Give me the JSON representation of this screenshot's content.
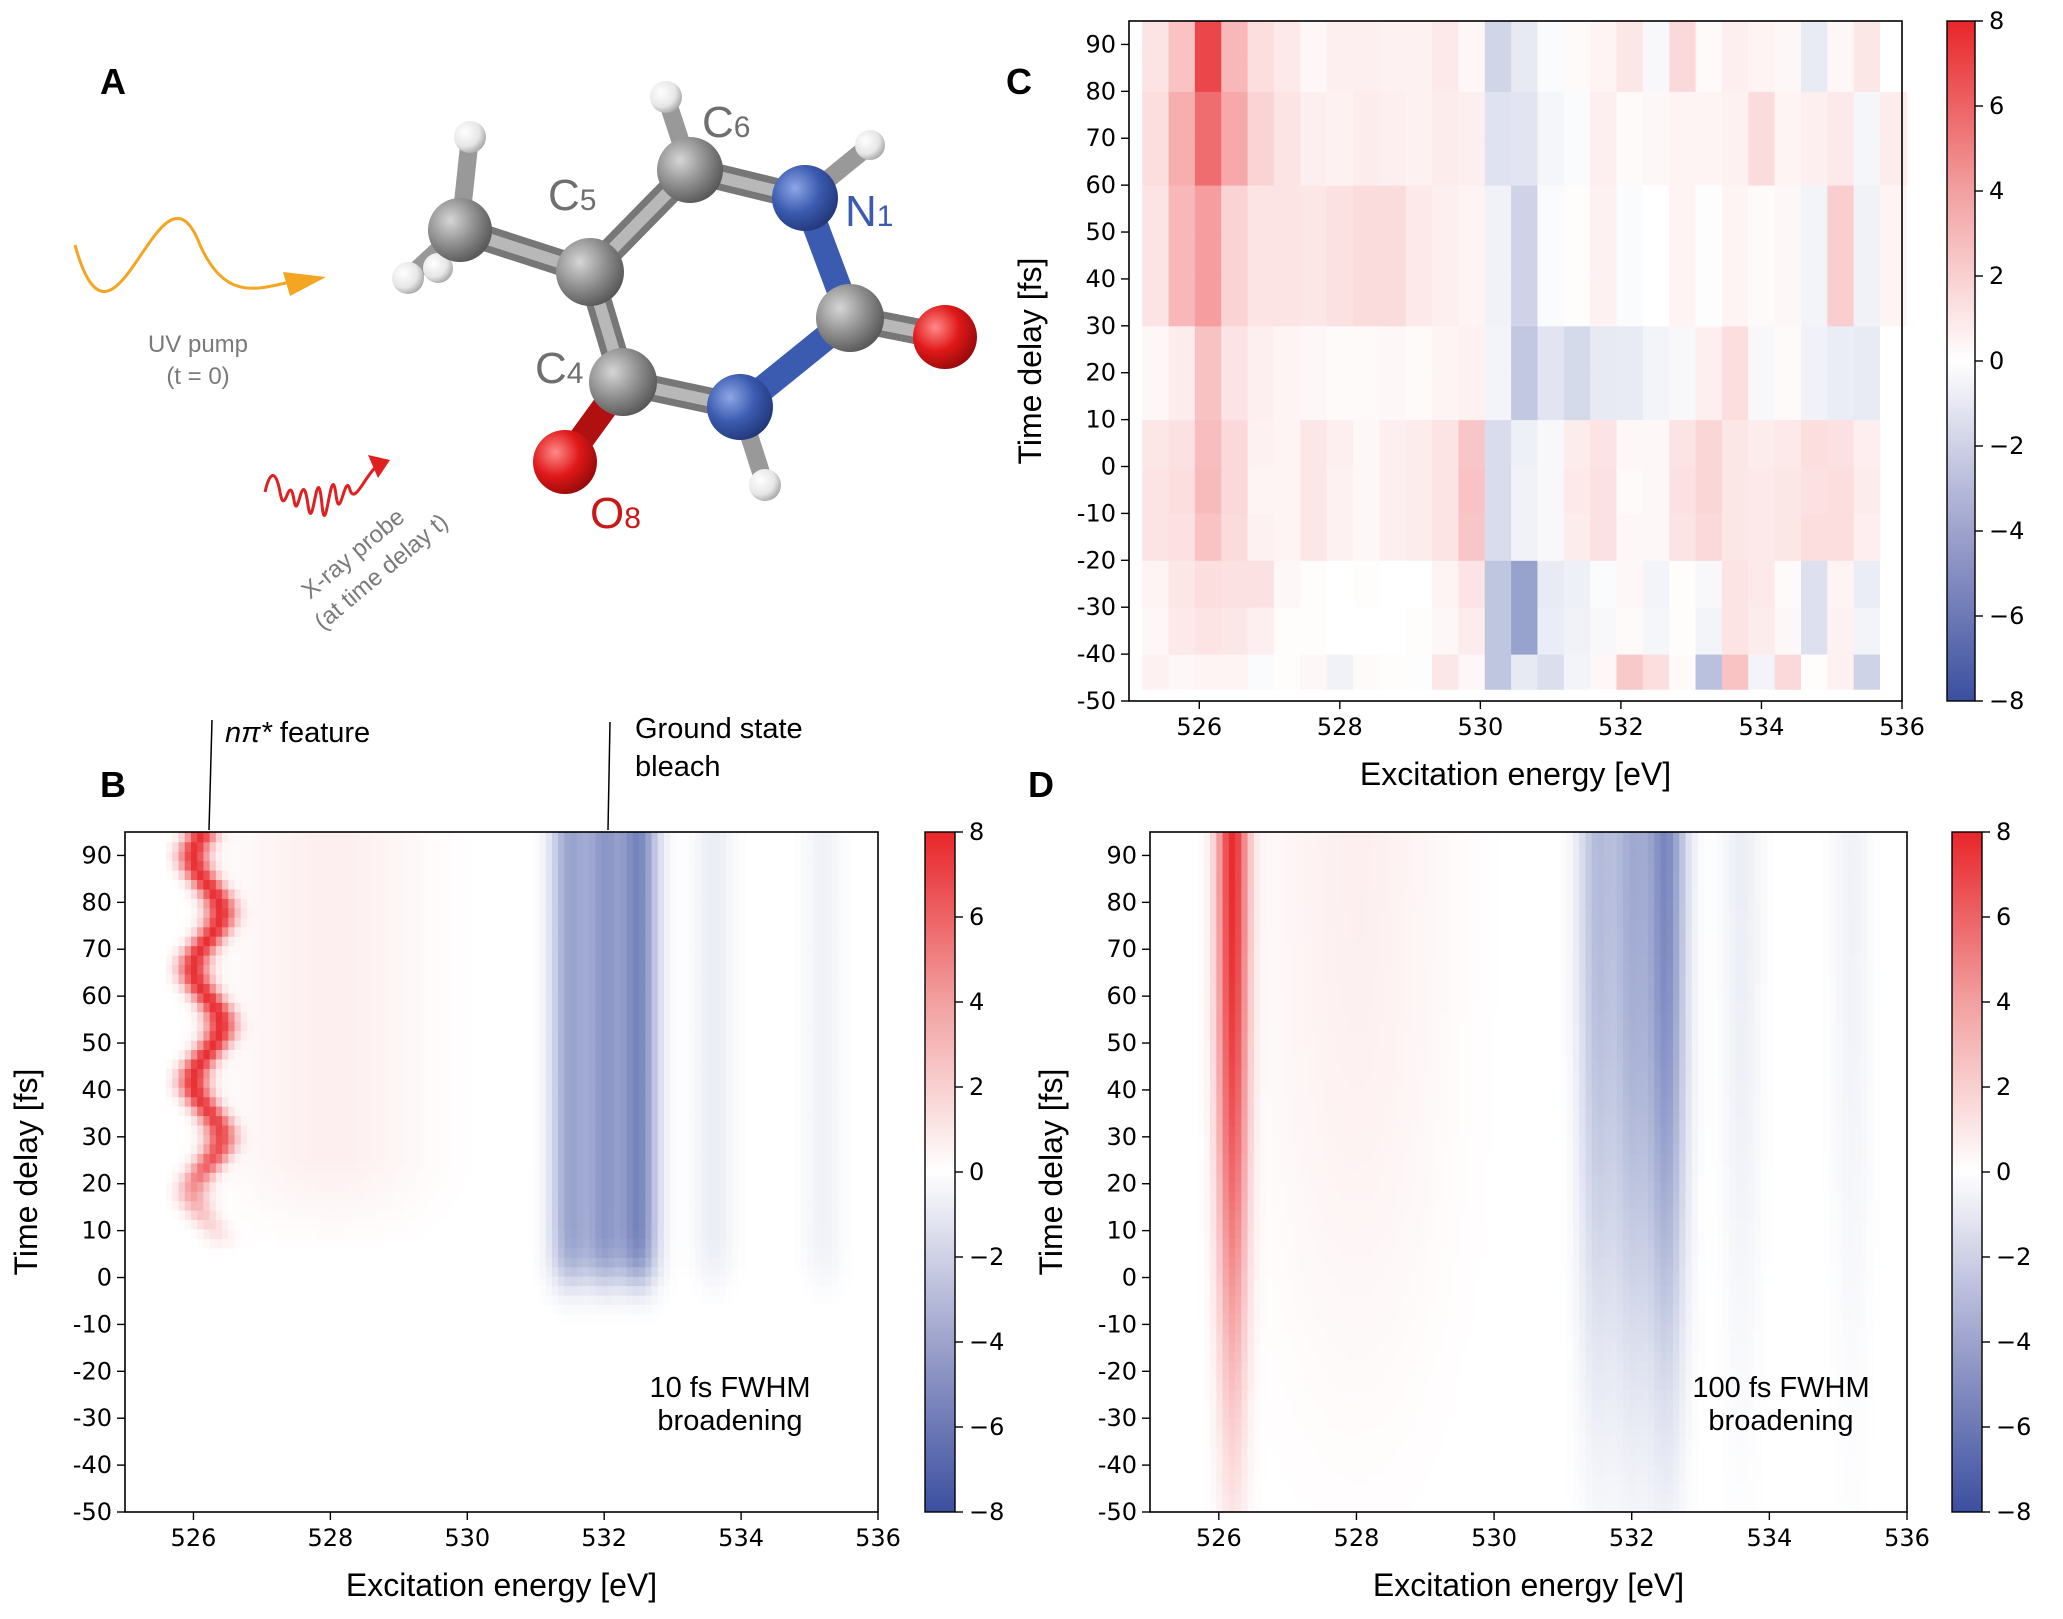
{
  "panel_labels": {
    "a": "A",
    "b": "B",
    "c": "C",
    "d": "D"
  },
  "colors": {
    "pos": "#e8262a",
    "neg": "#3b4fa0",
    "zero": "#ffffff",
    "carbon": "#8c8c8c",
    "nitrogen": "#3a5bb0",
    "oxygen": "#e01818",
    "pump": "#f4a623",
    "probe": "#e02020",
    "label_grey": "#6f6f6f"
  },
  "molecule": {
    "labels": {
      "c5": "C",
      "c5_sub": "5",
      "c6": "C",
      "c6_sub": "6",
      "n1": "N",
      "n1_sub": "1",
      "c4": "C",
      "c4_sub": "4",
      "o8": "O",
      "o8_sub": "8"
    },
    "pump_line1": "UV pump",
    "pump_line2": "(t = 0)",
    "probe_line1": "X-ray probe",
    "probe_line2": "(at time delay t)"
  },
  "annotations": {
    "npi_prefix": "nπ*",
    "npi_suffix": " feature",
    "gsb_line1": "Ground state",
    "gsb_line2": "bleach",
    "b_note1": "10 fs FWHM",
    "b_note2": "broadening",
    "d_note1": "100 fs FWHM",
    "d_note2": "broadening"
  },
  "chart_data": [
    {
      "panel": "C",
      "type": "heatmap",
      "xlabel": "Excitation energy [eV]",
      "ylabel": "Time delay [fs]",
      "xlim": [
        525,
        536
      ],
      "ylim": [
        -50,
        95
      ],
      "xticks": [
        "526",
        "528",
        "530",
        "532",
        "534",
        "536"
      ],
      "yticks": [
        "90",
        "80",
        "70",
        "60",
        "50",
        "40",
        "30",
        "20",
        "10",
        "0",
        "-10",
        "-20",
        "-30",
        "-40",
        "-50"
      ],
      "colorbar_range": [
        -8,
        8
      ],
      "colorbar_ticks": [
        "8",
        "6",
        "4",
        "2",
        "0",
        "−2",
        "−4",
        "−6",
        "−8"
      ],
      "x_bins": [
        525.375,
        525.75,
        526.125,
        526.5,
        526.875,
        527.25,
        527.625,
        528.0,
        528.375,
        528.75,
        529.125,
        529.5,
        529.875,
        530.25,
        530.625,
        531.0,
        531.375,
        531.75,
        532.125,
        532.5,
        532.875,
        533.25,
        533.625,
        534.0,
        534.375,
        534.75,
        535.125,
        535.5,
        535.875
      ],
      "y_bins": [
        -45,
        -35,
        -25,
        -15,
        -5,
        5,
        15,
        25,
        35,
        45,
        55,
        65,
        75,
        85,
        92
      ],
      "z": [
        [
          0.5,
          0.3,
          0.4,
          0.4,
          -0.2,
          0.1,
          0.3,
          -0.6,
          0.2,
          0.1,
          -0.1,
          0.9,
          0.3,
          -2.6,
          -1.0,
          -1.5,
          -0.5,
          0.3,
          2.0,
          1.2,
          0.2,
          -2.8,
          2.2,
          -0.5,
          1.4,
          0.1,
          0.5,
          -2.0,
          0.0
        ],
        [
          0.3,
          0.8,
          1.0,
          0.9,
          0.6,
          0.1,
          0.1,
          0.0,
          0.0,
          0.0,
          0.1,
          0.3,
          0.7,
          -2.6,
          -4.2,
          -0.8,
          -0.6,
          -0.3,
          0.2,
          -0.4,
          0.1,
          -0.5,
          1.0,
          0.7,
          0.3,
          -1.4,
          0.5,
          -0.5,
          0.0
        ],
        [
          0.4,
          0.9,
          1.2,
          1.1,
          1.1,
          0.3,
          0.1,
          0.0,
          0.1,
          0.0,
          0.0,
          0.4,
          1.0,
          -2.6,
          -4.2,
          -0.9,
          -0.7,
          -0.2,
          0.3,
          -0.5,
          0.1,
          -0.3,
          1.0,
          0.8,
          0.2,
          -1.4,
          0.4,
          -0.8,
          0.0
        ],
        [
          1.0,
          1.1,
          2.2,
          1.3,
          0.5,
          0.4,
          0.9,
          0.5,
          0.3,
          0.6,
          0.7,
          1.0,
          2.1,
          -1.6,
          -0.6,
          -0.3,
          0.7,
          1.1,
          0.3,
          0.3,
          1.0,
          1.4,
          0.9,
          0.8,
          0.9,
          1.2,
          1.2,
          0.6,
          0.0
        ],
        [
          1.0,
          1.2,
          2.5,
          1.4,
          0.4,
          0.4,
          0.9,
          0.5,
          0.3,
          0.6,
          0.7,
          1.0,
          2.2,
          -1.6,
          -0.6,
          -0.3,
          0.8,
          1.1,
          0.2,
          0.3,
          1.1,
          1.5,
          0.9,
          0.8,
          0.9,
          1.1,
          1.2,
          0.7,
          0.0
        ],
        [
          0.9,
          1.1,
          2.4,
          1.4,
          0.5,
          0.4,
          0.9,
          0.6,
          0.3,
          0.6,
          0.7,
          1.0,
          2.1,
          -1.6,
          -0.7,
          -0.3,
          0.7,
          1.0,
          0.3,
          0.3,
          1.0,
          1.5,
          0.9,
          0.7,
          0.8,
          1.2,
          1.1,
          0.6,
          0.0
        ],
        [
          0.3,
          0.7,
          2.3,
          1.0,
          0.6,
          0.4,
          0.3,
          0.2,
          0.2,
          0.3,
          0.2,
          0.4,
          0.5,
          -0.5,
          -2.5,
          -1.2,
          -1.7,
          -1.0,
          -0.9,
          -0.5,
          -0.3,
          0.6,
          1.2,
          -0.3,
          0.2,
          -0.6,
          -0.8,
          -0.9,
          0.0
        ],
        [
          0.3,
          0.7,
          2.3,
          1.0,
          0.6,
          0.4,
          0.3,
          0.2,
          0.2,
          0.3,
          0.2,
          0.4,
          0.5,
          -0.5,
          -2.5,
          -1.2,
          -1.7,
          -1.0,
          -0.9,
          -0.5,
          -0.3,
          0.6,
          1.2,
          -0.3,
          0.2,
          -0.6,
          -0.8,
          -0.9,
          0.0
        ],
        [
          1.0,
          2.6,
          3.6,
          1.6,
          1.0,
          1.0,
          0.9,
          1.1,
          1.3,
          1.3,
          0.8,
          0.6,
          0.4,
          -0.6,
          -2.0,
          -0.2,
          0.1,
          0.5,
          -0.2,
          0.0,
          0.4,
          -0.1,
          0.4,
          0.2,
          0.3,
          -0.5,
          1.8,
          -0.6,
          0.4
        ],
        [
          1.0,
          2.6,
          3.6,
          1.6,
          1.0,
          1.0,
          0.9,
          1.1,
          1.3,
          1.3,
          0.8,
          0.6,
          0.4,
          -0.6,
          -2.0,
          -0.2,
          0.1,
          0.5,
          -0.2,
          0.0,
          0.4,
          -0.1,
          0.4,
          0.2,
          0.3,
          -0.5,
          1.8,
          -0.6,
          0.4
        ],
        [
          1.0,
          2.6,
          3.6,
          1.6,
          1.0,
          1.0,
          0.9,
          1.1,
          1.3,
          1.3,
          0.8,
          0.6,
          0.4,
          -0.6,
          -2.0,
          -0.2,
          0.1,
          0.5,
          -0.2,
          0.0,
          0.4,
          -0.1,
          0.4,
          0.2,
          0.3,
          -0.5,
          1.8,
          -0.6,
          0.4
        ],
        [
          1.2,
          3.0,
          5.4,
          3.2,
          1.6,
          1.0,
          0.6,
          0.5,
          0.7,
          0.6,
          0.5,
          0.7,
          0.6,
          -1.3,
          -1.2,
          -0.4,
          -0.2,
          0.6,
          0.2,
          0.3,
          0.4,
          0.4,
          0.5,
          1.3,
          0.4,
          0.6,
          0.8,
          -0.4,
          0.7
        ],
        [
          1.2,
          3.0,
          5.4,
          3.2,
          1.6,
          1.0,
          0.6,
          0.5,
          0.7,
          0.6,
          0.5,
          0.7,
          0.6,
          -1.3,
          -1.2,
          -0.4,
          -0.2,
          0.6,
          0.2,
          0.3,
          0.4,
          0.4,
          0.5,
          1.3,
          0.4,
          0.6,
          0.8,
          -0.4,
          0.7
        ],
        [
          1.0,
          2.2,
          6.8,
          2.6,
          1.2,
          0.8,
          0.3,
          0.6,
          0.6,
          0.5,
          0.5,
          0.8,
          0.3,
          -1.9,
          -1.0,
          -0.2,
          0.2,
          0.4,
          0.9,
          -0.3,
          1.4,
          0.2,
          0.6,
          0.4,
          0.3,
          -0.9,
          0.3,
          0.9,
          0.0
        ],
        [
          1.0,
          2.2,
          6.8,
          2.6,
          1.2,
          0.8,
          0.3,
          0.6,
          0.6,
          0.5,
          0.5,
          0.8,
          0.3,
          -1.9,
          -1.0,
          -0.2,
          0.2,
          0.4,
          0.9,
          -0.3,
          1.4,
          0.2,
          0.6,
          0.4,
          0.3,
          -0.9,
          0.3,
          0.9,
          0.0
        ]
      ]
    },
    {
      "panel": "B",
      "type": "heatmap",
      "xlabel": "Excitation energy [eV]",
      "ylabel": "Time delay [fs]",
      "xlim": [
        525,
        536
      ],
      "ylim": [
        -50,
        95
      ],
      "xticks": [
        "526",
        "528",
        "530",
        "532",
        "534",
        "536"
      ],
      "yticks": [
        "90",
        "80",
        "70",
        "60",
        "50",
        "40",
        "30",
        "20",
        "10",
        "0",
        "-10",
        "-20",
        "-30",
        "-40",
        "-50"
      ],
      "colorbar_range": [
        -8,
        8
      ],
      "colorbar_ticks": [
        "8",
        "6",
        "4",
        "2",
        "0",
        "−2",
        "−4",
        "−6",
        "−8"
      ],
      "broadening_fwhm_fs": 10,
      "npi_feature_center_eV": 526.2,
      "npi_oscillation_amplitude_eV": 0.2,
      "npi_oscillation_period_fs": 24,
      "npi_peak_value": 7.5,
      "bleach_bands": [
        {
          "center_eV": 531.5,
          "value": -4.0
        },
        {
          "center_eV": 532.0,
          "value": -4.4
        },
        {
          "center_eV": 532.5,
          "value": -5.4
        },
        {
          "center_eV": 533.6,
          "value": -0.8
        },
        {
          "center_eV": 535.2,
          "value": -0.6
        }
      ],
      "onset_fs": 0
    },
    {
      "panel": "D",
      "type": "heatmap",
      "xlabel": "Excitation energy [eV]",
      "ylabel": "Time delay [fs]",
      "xlim": [
        525,
        536
      ],
      "ylim": [
        -50,
        95
      ],
      "xticks": [
        "526",
        "528",
        "530",
        "532",
        "534",
        "536"
      ],
      "yticks": [
        "90",
        "80",
        "70",
        "60",
        "50",
        "40",
        "30",
        "20",
        "10",
        "0",
        "-10",
        "-20",
        "-30",
        "-40",
        "-50"
      ],
      "colorbar_range": [
        -8,
        8
      ],
      "colorbar_ticks": [
        "8",
        "6",
        "4",
        "2",
        "0",
        "−2",
        "−4",
        "−6",
        "−8"
      ],
      "broadening_fwhm_fs": 100,
      "npi_feature_center_eV": 526.2,
      "npi_peak_value": 7.8,
      "bleach_bands": [
        {
          "center_eV": 531.5,
          "value": -3.0
        },
        {
          "center_eV": 532.0,
          "value": -3.6
        },
        {
          "center_eV": 532.5,
          "value": -5.4
        },
        {
          "center_eV": 533.6,
          "value": -0.8
        },
        {
          "center_eV": 535.2,
          "value": -0.6
        }
      ],
      "onset_fs": 0
    }
  ]
}
